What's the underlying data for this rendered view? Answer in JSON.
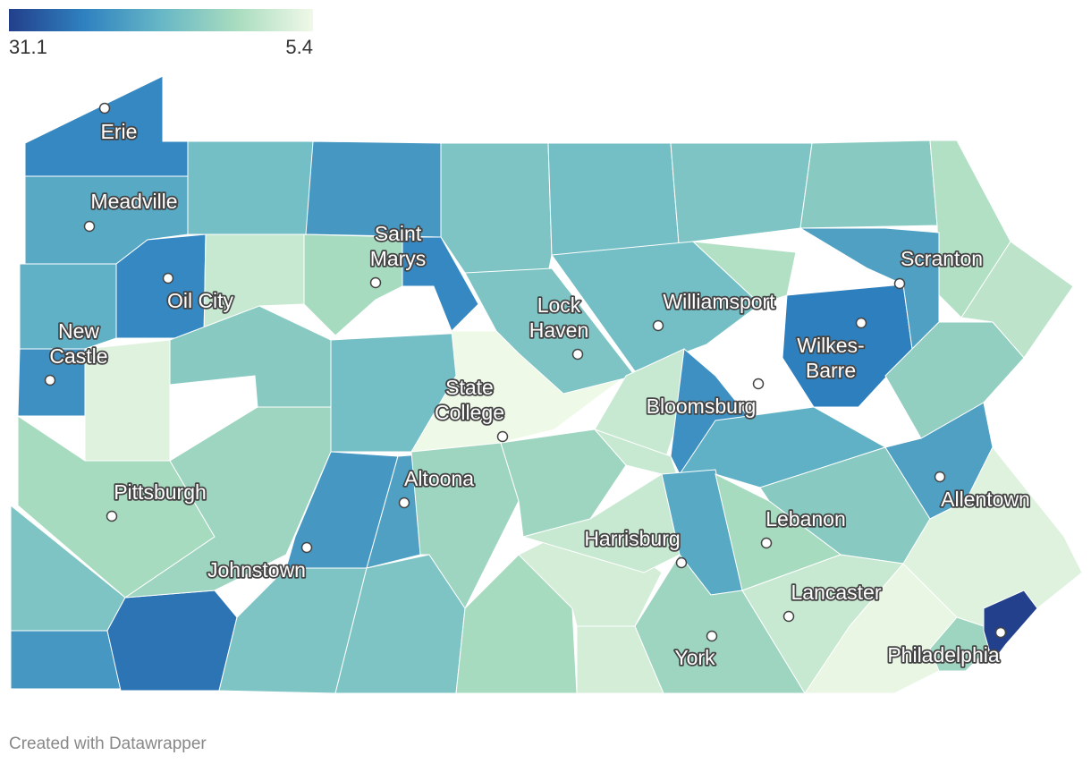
{
  "legend": {
    "high": 31.1,
    "low": 5.4,
    "colors": [
      "#233f8b",
      "#2f82c0",
      "#67b7c6",
      "#a9dcbf",
      "#f0f9e8"
    ]
  },
  "map": {
    "values": [
      24,
      20,
      17,
      22,
      16,
      17,
      16,
      15,
      11,
      10,
      19,
      24,
      9,
      12,
      24,
      23,
      7,
      15,
      17,
      5.5,
      16,
      17,
      11,
      25,
      21,
      14,
      9,
      12,
      16,
      22,
      26,
      13,
      22,
      21,
      16,
      16,
      13,
      12,
      8,
      8,
      13,
      9,
      9,
      23,
      19,
      20,
      15,
      12,
      21,
      13,
      9,
      6,
      7,
      13,
      31
    ]
  },
  "cities": [
    "Erie",
    "Meadville",
    "Oil City",
    "New Castle",
    "Saint Marys",
    "Lock Haven",
    "Williamsport",
    "Scranton",
    "Wilkes-Barre",
    "State College",
    "Bloomsburg",
    "Pittsburgh",
    "Altoona",
    "Johnstown",
    "Allentown",
    "Lebanon",
    "Harrisburg",
    "Lancaster",
    "York",
    "Philadelphia"
  ],
  "footer": "Created with Datawrapper"
}
